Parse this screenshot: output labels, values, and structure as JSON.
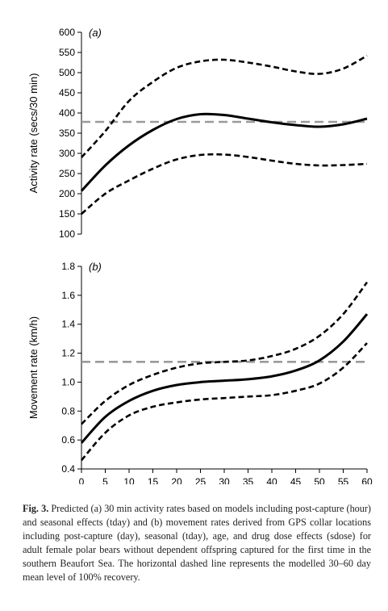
{
  "chart_data": [
    {
      "type": "line",
      "panel_label": "(a)",
      "ylabel": "Activity rate (secs/30 min)",
      "xlim": [
        0,
        60
      ],
      "ylim": [
        100,
        600
      ],
      "yticks": [
        100,
        150,
        200,
        250,
        300,
        350,
        400,
        450,
        500,
        550,
        600
      ],
      "x": [
        0,
        5,
        10,
        15,
        20,
        25,
        30,
        35,
        40,
        45,
        50,
        55,
        60
      ],
      "series": [
        {
          "role": "estimate",
          "style": "solid",
          "color": "#000000",
          "values": [
            207,
            270,
            320,
            358,
            385,
            397,
            395,
            386,
            377,
            370,
            366,
            372,
            386
          ]
        },
        {
          "role": "upper",
          "style": "dashed",
          "color": "#000000",
          "values": [
            290,
            355,
            430,
            477,
            512,
            528,
            532,
            525,
            515,
            503,
            497,
            510,
            542
          ]
        },
        {
          "role": "lower",
          "style": "dashed",
          "color": "#000000",
          "values": [
            150,
            200,
            233,
            262,
            285,
            296,
            297,
            291,
            282,
            274,
            270,
            271,
            274
          ]
        },
        {
          "role": "mean-recovery",
          "style": "dashed",
          "color": "#9a9a9a",
          "values": [
            378,
            378,
            378,
            378,
            378,
            378,
            378,
            378,
            378,
            378,
            378,
            378,
            378
          ]
        }
      ]
    },
    {
      "type": "line",
      "panel_label": "(b)",
      "xlabel": "",
      "ylabel": "Movement rate (km/h)",
      "xlim": [
        0,
        60
      ],
      "ylim": [
        0.4,
        1.8
      ],
      "yticks": [
        0.4,
        0.6,
        0.8,
        1.0,
        1.2,
        1.4,
        1.6,
        1.8
      ],
      "xticks": [
        0,
        5,
        10,
        15,
        20,
        25,
        30,
        35,
        40,
        45,
        50,
        55,
        60
      ],
      "x": [
        0,
        5,
        10,
        15,
        20,
        25,
        30,
        35,
        40,
        45,
        50,
        55,
        60
      ],
      "series": [
        {
          "role": "estimate",
          "style": "solid",
          "color": "#000000",
          "values": [
            0.58,
            0.76,
            0.87,
            0.94,
            0.98,
            1.0,
            1.01,
            1.02,
            1.04,
            1.08,
            1.15,
            1.28,
            1.47
          ]
        },
        {
          "role": "upper",
          "style": "dashed",
          "color": "#000000",
          "values": [
            0.71,
            0.87,
            0.98,
            1.05,
            1.1,
            1.13,
            1.14,
            1.15,
            1.18,
            1.23,
            1.32,
            1.47,
            1.69
          ]
        },
        {
          "role": "lower",
          "style": "dashed",
          "color": "#000000",
          "values": [
            0.46,
            0.65,
            0.77,
            0.83,
            0.86,
            0.88,
            0.89,
            0.9,
            0.91,
            0.94,
            0.99,
            1.1,
            1.27
          ]
        },
        {
          "role": "mean-recovery",
          "style": "dashed",
          "color": "#9a9a9a",
          "values": [
            1.14,
            1.14,
            1.14,
            1.14,
            1.14,
            1.14,
            1.14,
            1.14,
            1.14,
            1.14,
            1.14,
            1.14,
            1.14
          ]
        }
      ]
    }
  ],
  "caption": {
    "label": "Fig. 3.",
    "text": "Predicted (a) 30 min activity rates based on models including post-capture (hour) and seasonal effects (tday) and (b) movement rates derived from GPS collar locations including post-capture (day), seasonal (tday), age, and drug dose effects (sdose) for adult female polar bears without dependent offspring captured for the first time in the southern Beaufort Sea. The horizontal dashed line represents the modelled 30–60 day mean level of 100% recovery."
  }
}
